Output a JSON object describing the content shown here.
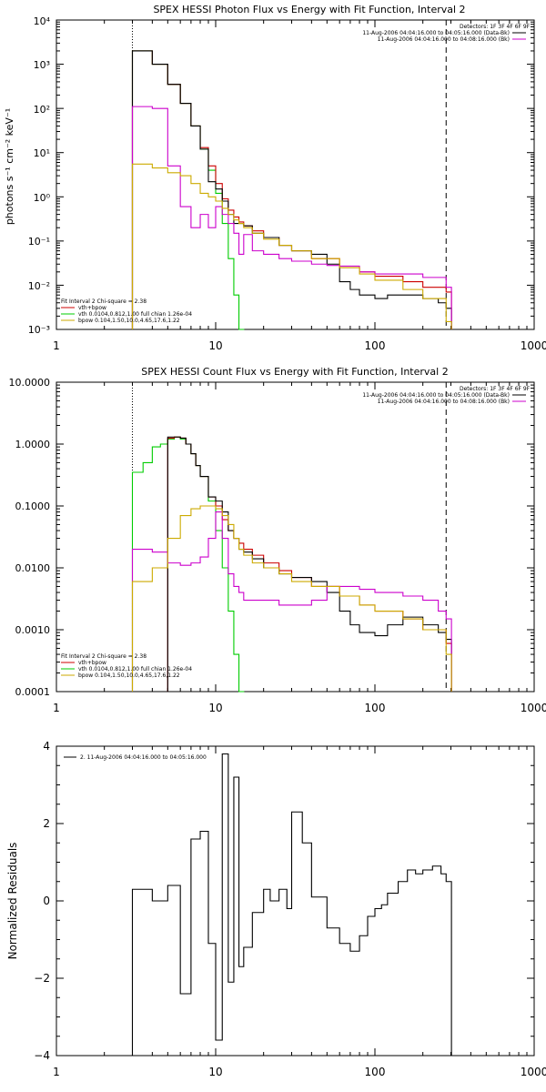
{
  "chart_data": [
    {
      "type": "line",
      "title": "SPEX HESSI Photon Flux vs Energy with Fit Function, Interval 2",
      "ylabel": "photons s⁻¹ cm⁻² keV⁻¹",
      "xscale": "log",
      "yscale": "log",
      "xlim": [
        1,
        1000
      ],
      "ylim": [
        0.001,
        10000
      ],
      "xticks": [
        "1",
        "10",
        "100",
        "1000"
      ],
      "yticks": [
        "10⁻³",
        "10⁻²",
        "10⁻¹",
        "10⁰",
        "10¹",
        "10²",
        "10³",
        "10⁴"
      ],
      "vlines": [
        {
          "x": 3,
          "style": "dotted",
          "color": "#000000"
        },
        {
          "x": 280,
          "style": "dashed",
          "color": "#000000"
        }
      ],
      "legend_top": {
        "placement": "top-right",
        "header": "Detectors: 1F 3F 4F 6F 9F",
        "entries": [
          {
            "label": "11-Aug-2006 04:04:16.000 to 04:05:16.000 (Data-Bk)",
            "color": "#000000"
          },
          {
            "label": "11-Aug-2006 04:04:16.000 to 04:08:16.000 (Bk)",
            "color": "#cc00cc"
          }
        ]
      },
      "legend_bottom": {
        "placement": "bottom-left",
        "header": "Fit Interval 2   Chi-square = 2.38",
        "entries": [
          {
            "label": "vth+bpow",
            "color": "#cc0000"
          },
          {
            "label": "vth 0.0104,0.812,1.00  full chian 1.26e-04",
            "color": "#00cc00"
          },
          {
            "label": "bpow 0.104,1.50,10.0,4.65,17.6,1.22",
            "color": "#ccaa00"
          }
        ]
      },
      "series": [
        {
          "color": "#00cc00",
          "x": [
            3,
            4,
            5,
            6,
            7,
            8,
            9,
            10,
            11,
            12,
            13,
            14
          ],
          "y": [
            2000,
            1000,
            350,
            130,
            40,
            12,
            4,
            1.2,
            0.25,
            0.04,
            0.006,
            0.0008
          ]
        },
        {
          "color": "#cc0000",
          "x": [
            3,
            4,
            5,
            6,
            7,
            8,
            9,
            10,
            11,
            12,
            13,
            14,
            15,
            17,
            20,
            25,
            30,
            40,
            60,
            80,
            100,
            150,
            200,
            280
          ],
          "y": [
            2000,
            1000,
            350,
            130,
            40,
            13,
            5,
            2,
            0.9,
            0.5,
            0.35,
            0.27,
            0.22,
            0.17,
            0.12,
            0.08,
            0.06,
            0.04,
            0.025,
            0.02,
            0.016,
            0.012,
            0.009,
            0.007
          ]
        },
        {
          "color": "#000000",
          "x": [
            3,
            4,
            5,
            6,
            7,
            8,
            9,
            10,
            11,
            12,
            13,
            14,
            15,
            17,
            20,
            25,
            30,
            40,
            50,
            60,
            70,
            80,
            100,
            120,
            150,
            200,
            250,
            280
          ],
          "y": [
            2000,
            1000,
            350,
            130,
            40,
            12,
            2.2,
            1.5,
            0.8,
            0.4,
            0.25,
            0.25,
            0.22,
            0.15,
            0.12,
            0.08,
            0.06,
            0.05,
            0.03,
            0.012,
            0.008,
            0.006,
            0.005,
            0.006,
            0.006,
            0.005,
            0.004,
            0.003
          ]
        },
        {
          "color": "#cc00cc",
          "x": [
            3,
            4,
            5,
            6,
            7,
            8,
            9,
            10,
            11,
            12,
            13,
            14,
            15,
            17,
            20,
            25,
            30,
            40,
            50,
            60,
            80,
            100,
            150,
            200,
            250,
            280
          ],
          "y": [
            110,
            100,
            5,
            0.6,
            0.2,
            0.4,
            0.2,
            0.6,
            0.4,
            0.25,
            0.15,
            0.05,
            0.14,
            0.06,
            0.05,
            0.04,
            0.035,
            0.03,
            0.028,
            0.027,
            0.02,
            0.018,
            0.018,
            0.015,
            0.015,
            0.009
          ]
        },
        {
          "color": "#ccaa00",
          "x": [
            3,
            4,
            5,
            6,
            7,
            8,
            9,
            10,
            11,
            12,
            13,
            14,
            15,
            17,
            20,
            25,
            30,
            40,
            60,
            80,
            100,
            150,
            200,
            280
          ],
          "y": [
            5.5,
            4.5,
            3.5,
            3,
            2,
            1.2,
            1,
            0.8,
            0.55,
            0.4,
            0.3,
            0.25,
            0.2,
            0.15,
            0.11,
            0.08,
            0.06,
            0.04,
            0.025,
            0.018,
            0.013,
            0.008,
            0.005,
            0.0015
          ]
        }
      ]
    },
    {
      "type": "line",
      "title": "SPEX HESSI Count Flux vs Energy with Fit Function, Interval 2",
      "ylabel": "",
      "xscale": "log",
      "yscale": "log",
      "xlim": [
        1,
        1000
      ],
      "ylim": [
        0.0001,
        10
      ],
      "xticks": [
        "1",
        "10",
        "100",
        "1000"
      ],
      "yticks": [
        "0.0001",
        "0.0010",
        "0.0100",
        "0.1000",
        "1.0000",
        "10.0000"
      ],
      "vlines": [
        {
          "x": 3,
          "style": "dotted",
          "color": "#000000"
        },
        {
          "x": 280,
          "style": "dashed",
          "color": "#000000"
        }
      ],
      "legend_top": {
        "placement": "top-right",
        "header": "Detectors: 1F 3F 4F 6F 9F",
        "entries": [
          {
            "label": "11-Aug-2006 04:04:16.000 to 04:05:16.000 (Data-Bk)",
            "color": "#000000"
          },
          {
            "label": "11-Aug-2006 04:04:16.000 to 04:08:16.000 (Bk)",
            "color": "#cc00cc"
          }
        ]
      },
      "legend_bottom": {
        "placement": "bottom-left",
        "header": "Fit Interval 2   Chi-square = 2.38",
        "entries": [
          {
            "label": "vth+bpow",
            "color": "#cc0000"
          },
          {
            "label": "vth 0.0104,0.812,1.00  full chian 1.26e-04",
            "color": "#00cc00"
          },
          {
            "label": "bpow 0.104,1.50,10.0,4.65,17.6,1.22",
            "color": "#ccaa00"
          }
        ]
      },
      "series": [
        {
          "color": "#00cc00",
          "x": [
            3,
            3.5,
            4,
            4.5,
            5,
            5.5,
            6,
            6.5,
            7,
            7.5,
            8,
            9,
            10,
            11,
            12,
            13,
            14
          ],
          "y": [
            0.35,
            0.5,
            0.9,
            1.0,
            1.2,
            1.3,
            1.2,
            1.0,
            0.7,
            0.45,
            0.3,
            0.12,
            0.04,
            0.01,
            0.002,
            0.0004,
            0.0001
          ]
        },
        {
          "color": "#cc0000",
          "x": [
            5,
            5.5,
            6,
            6.5,
            7,
            7.5,
            8,
            9,
            10,
            11,
            12,
            13,
            14,
            15,
            17,
            20,
            25,
            30,
            40,
            60,
            80,
            100,
            150,
            200,
            280
          ],
          "y": [
            1.25,
            1.3,
            1.25,
            1.0,
            0.7,
            0.45,
            0.3,
            0.14,
            0.1,
            0.06,
            0.04,
            0.03,
            0.025,
            0.02,
            0.016,
            0.012,
            0.009,
            0.007,
            0.005,
            0.0035,
            0.0025,
            0.002,
            0.0015,
            0.001,
            0.0006
          ]
        },
        {
          "color": "#000000",
          "x": [
            5,
            5.5,
            6,
            6.5,
            7,
            7.5,
            8,
            9,
            10,
            11,
            12,
            13,
            14,
            15,
            17,
            20,
            25,
            30,
            40,
            50,
            60,
            70,
            80,
            100,
            120,
            150,
            200,
            250,
            280
          ],
          "y": [
            1.3,
            1.3,
            1.25,
            1.0,
            0.7,
            0.45,
            0.3,
            0.14,
            0.12,
            0.08,
            0.04,
            0.03,
            0.02,
            0.018,
            0.014,
            0.01,
            0.008,
            0.007,
            0.006,
            0.004,
            0.002,
            0.0012,
            0.0009,
            0.0008,
            0.0012,
            0.0016,
            0.0012,
            0.0009,
            0.0007
          ]
        },
        {
          "color": "#cc00cc",
          "x": [
            3,
            4,
            5,
            6,
            7,
            8,
            9,
            10,
            11,
            12,
            13,
            14,
            15,
            17,
            20,
            25,
            30,
            40,
            50,
            60,
            80,
            100,
            150,
            200,
            250,
            280
          ],
          "y": [
            0.02,
            0.018,
            0.012,
            0.011,
            0.012,
            0.015,
            0.03,
            0.08,
            0.03,
            0.008,
            0.005,
            0.004,
            0.003,
            0.003,
            0.003,
            0.0025,
            0.0025,
            0.003,
            0.005,
            0.005,
            0.0045,
            0.004,
            0.0035,
            0.003,
            0.002,
            0.0015
          ]
        },
        {
          "color": "#ccaa00",
          "x": [
            3,
            4,
            5,
            6,
            7,
            8,
            9,
            10,
            11,
            12,
            13,
            14,
            15,
            17,
            20,
            25,
            30,
            40,
            60,
            80,
            100,
            150,
            200,
            280
          ],
          "y": [
            0.006,
            0.01,
            0.03,
            0.07,
            0.09,
            0.1,
            0.1,
            0.09,
            0.07,
            0.05,
            0.03,
            0.02,
            0.016,
            0.012,
            0.01,
            0.008,
            0.006,
            0.005,
            0.0035,
            0.0025,
            0.002,
            0.0015,
            0.001,
            0.0004
          ]
        }
      ]
    },
    {
      "type": "line",
      "title": "",
      "ylabel": "Normalized Residuals",
      "xscale": "log",
      "yscale": "linear",
      "xlim": [
        1,
        1000
      ],
      "ylim": [
        -4,
        4
      ],
      "xticks": [
        "1",
        "10",
        "100",
        "1000"
      ],
      "yticks": [
        "−4",
        "−2",
        "0",
        "2",
        "4"
      ],
      "legend_top": {
        "placement": "top-left",
        "header": "",
        "entries": [
          {
            "label": "2. 11-Aug-2006 04:04:16.000 to 04:05:16.000",
            "color": "#000000"
          }
        ]
      },
      "series": [
        {
          "color": "#000000",
          "step": true,
          "x": [
            3,
            4,
            5,
            6,
            7,
            8,
            9,
            10,
            11,
            12,
            13,
            14,
            15,
            17,
            20,
            22,
            25,
            28,
            30,
            35,
            40,
            50,
            60,
            70,
            80,
            90,
            100,
            110,
            120,
            140,
            160,
            180,
            200,
            230,
            260,
            280
          ],
          "y": [
            0.3,
            0.0,
            0.4,
            -2.4,
            1.6,
            1.8,
            -1.1,
            -3.6,
            3.8,
            -2.1,
            3.2,
            -1.7,
            -1.2,
            -0.3,
            0.3,
            0.0,
            0.3,
            -0.2,
            2.3,
            1.5,
            0.1,
            -0.7,
            -1.1,
            -1.3,
            -0.9,
            -0.4,
            -0.2,
            -0.1,
            0.2,
            0.5,
            0.8,
            0.7,
            0.8,
            0.9,
            0.7,
            0.5
          ]
        }
      ]
    }
  ]
}
